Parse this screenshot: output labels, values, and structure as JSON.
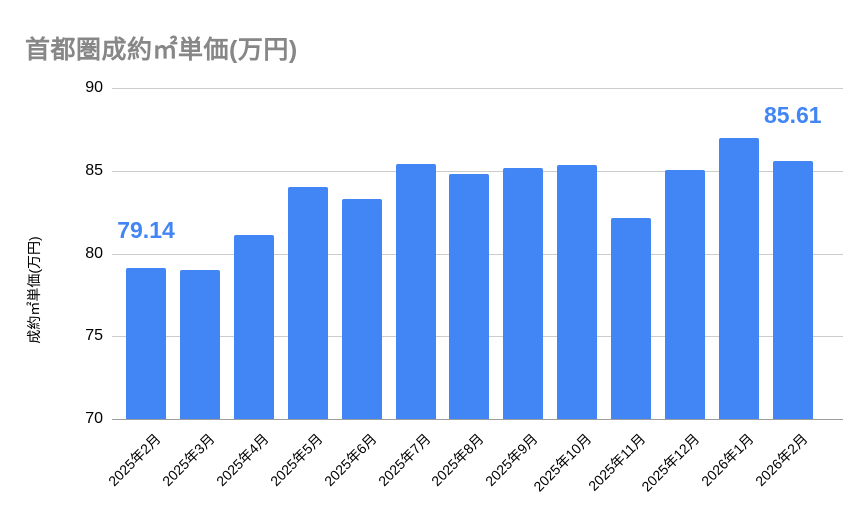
{
  "chart": {
    "title": "首都圏成約㎡単価(万円)",
    "colors": {
      "bar": "#4285f4",
      "data_label": "#4285f4",
      "title_text": "#878787",
      "axis_text": "#000000",
      "gridline": "#cccccc",
      "baseline": "#9e9e9e",
      "background": "#ffffff"
    }
  },
  "chart_data": {
    "type": "bar",
    "title": "首都圏成約㎡単価(万円)",
    "xlabel": "",
    "ylabel": "成約㎡単価(万円)",
    "categories": [
      "2025年2月",
      "2025年3月",
      "2025年4月",
      "2025年5月",
      "2025年6月",
      "2025年7月",
      "2025年8月",
      "2025年9月",
      "2025年10月",
      "2025年11月",
      "2025年12月",
      "2026年1月",
      "2026年2月"
    ],
    "values": [
      79.14,
      78.99,
      81.1,
      84.0,
      83.3,
      85.42,
      84.8,
      85.15,
      85.33,
      82.15,
      85.05,
      86.95,
      85.61
    ],
    "ylim": [
      70,
      90
    ],
    "yticks": [
      70,
      75,
      80,
      85,
      90
    ],
    "grid": true,
    "legend": "none",
    "data_labels": [
      {
        "index": 0,
        "text": "79.14"
      },
      {
        "index": 12,
        "text": "85.61"
      }
    ]
  }
}
